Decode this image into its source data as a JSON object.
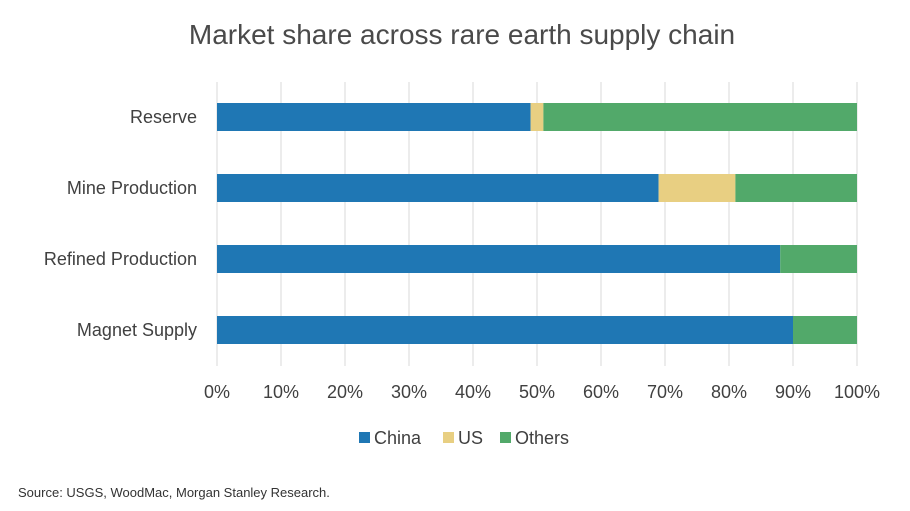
{
  "chart_data": {
    "type": "bar",
    "orientation": "horizontal",
    "stacked": "percent",
    "title": "Market share across rare earth supply chain",
    "categories": [
      "Reserve",
      "Mine Production",
      "Refined Production",
      "Magnet Supply"
    ],
    "series": [
      {
        "name": "China",
        "values": [
          49,
          69,
          88,
          90
        ]
      },
      {
        "name": "US",
        "values": [
          2,
          12,
          0,
          0
        ]
      },
      {
        "name": "Others",
        "values": [
          49,
          19,
          12,
          10
        ]
      }
    ],
    "xlim": [
      0,
      100
    ],
    "xticks": [
      "0%",
      "10%",
      "20%",
      "30%",
      "40%",
      "50%",
      "60%",
      "70%",
      "80%",
      "90%",
      "100%"
    ],
    "xtick_values": [
      0,
      10,
      20,
      30,
      40,
      50,
      60,
      70,
      80,
      90,
      100
    ],
    "grid": true,
    "legend_position": "bottom",
    "colors": {
      "China": "#1f77b4",
      "US": "#e8cf82",
      "Others": "#52a96a"
    }
  },
  "source": "Source: USGS, WoodMac, Morgan Stanley Research."
}
